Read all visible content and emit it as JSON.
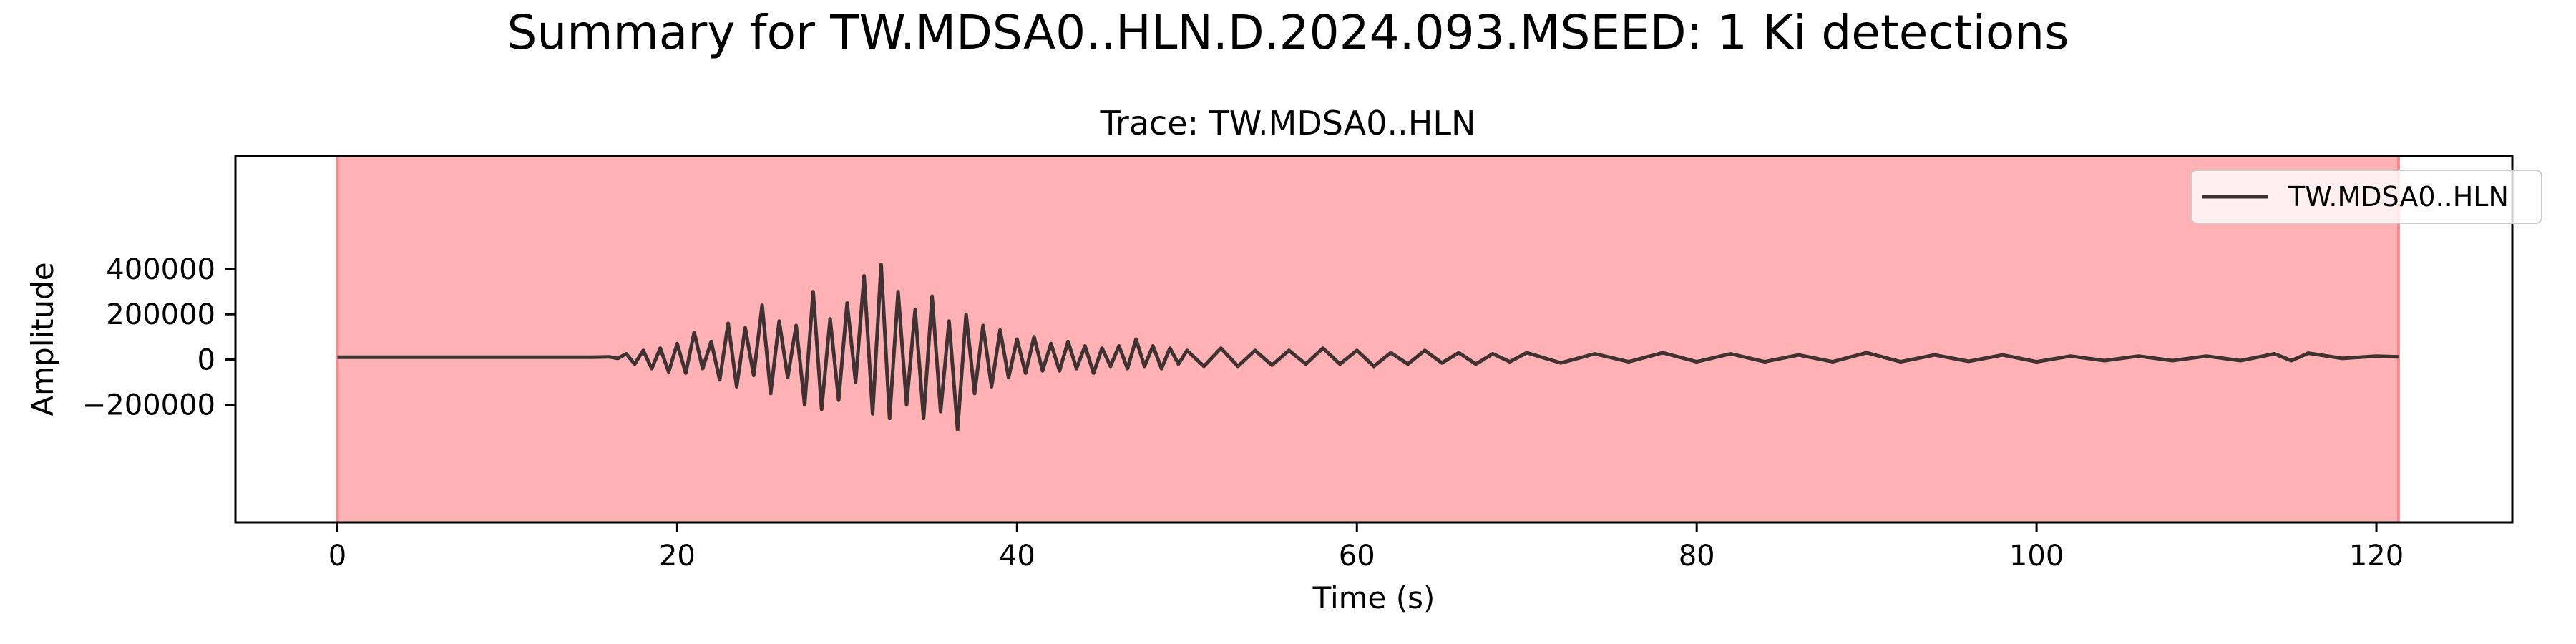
{
  "figure": {
    "suptitle": "Summary for TW.MDSA0..HLN.D.2024.093.MSEED: 1 Ki detections"
  },
  "colors": {
    "trace": "#3f3233",
    "detection_span": "#ffb1b3",
    "detection_edge": "#f08a8d",
    "axes": "#000000",
    "background": "#ffffff"
  },
  "chart_data": {
    "type": "line",
    "title": "Trace: TW.MDSA0..HLN",
    "xlabel": "Time (s)",
    "ylabel": "Amplitude",
    "xlim": [
      -6,
      128
    ],
    "ylim": [
      -720000,
      900000
    ],
    "grid": false,
    "legend_placement": "upper right",
    "xticks": [
      0,
      20,
      40,
      60,
      80,
      100,
      120
    ],
    "xtick_labels": [
      "0",
      "20",
      "40",
      "60",
      "80",
      "100",
      "120"
    ],
    "yticks": [
      -200000,
      0,
      200000,
      400000
    ],
    "ytick_labels": [
      "−200000",
      "0",
      "200000",
      "400000"
    ],
    "detections": [
      {
        "label": "Ki",
        "start": 0,
        "end": 121.3
      }
    ],
    "series": [
      {
        "name": "TW.MDSA0..HLN",
        "x": [
          0,
          15.0,
          16.0,
          16.5,
          17.0,
          17.5,
          18.0,
          18.5,
          19.0,
          19.5,
          20.0,
          20.5,
          21.0,
          21.5,
          22.0,
          22.5,
          23.0,
          23.5,
          24.0,
          24.5,
          25.0,
          25.5,
          26.0,
          26.5,
          27.0,
          27.5,
          28.0,
          28.5,
          29.0,
          29.5,
          30.0,
          30.5,
          31.0,
          31.5,
          32.0,
          32.5,
          33.0,
          33.5,
          34.0,
          34.5,
          35.0,
          35.5,
          36.0,
          36.5,
          37.0,
          37.5,
          38.0,
          38.5,
          39.0,
          39.5,
          40.0,
          40.5,
          41.0,
          41.5,
          42.0,
          42.5,
          43.0,
          43.5,
          44.0,
          44.5,
          45.0,
          45.5,
          46.0,
          46.5,
          47.0,
          47.5,
          48.0,
          48.5,
          49.0,
          49.5,
          50.0,
          51.0,
          52.0,
          53.0,
          54.0,
          55.0,
          56.0,
          57.0,
          58.0,
          59.0,
          60.0,
          61.0,
          62.0,
          63.0,
          64.0,
          65.0,
          66.0,
          67.0,
          68.0,
          69.0,
          70.0,
          72.0,
          74.0,
          76.0,
          78.0,
          80.0,
          82.0,
          84.0,
          86.0,
          88.0,
          90.0,
          92.0,
          94.0,
          96.0,
          98.0,
          100.0,
          102.0,
          104.0,
          106.0,
          108.0,
          110.0,
          112.0,
          114.0,
          115.0,
          116.0,
          118.0,
          120.0,
          121.3
        ],
        "values": [
          10000,
          10000,
          12000,
          5000,
          25000,
          -20000,
          40000,
          -40000,
          50000,
          -55000,
          70000,
          -60000,
          120000,
          -40000,
          80000,
          -90000,
          160000,
          -120000,
          140000,
          -70000,
          240000,
          -150000,
          170000,
          -80000,
          150000,
          -200000,
          300000,
          -220000,
          180000,
          -180000,
          250000,
          -100000,
          370000,
          -240000,
          420000,
          -260000,
          300000,
          -200000,
          220000,
          -260000,
          280000,
          -230000,
          170000,
          -310000,
          200000,
          -150000,
          150000,
          -120000,
          130000,
          -80000,
          90000,
          -60000,
          100000,
          -50000,
          70000,
          -50000,
          80000,
          -40000,
          60000,
          -60000,
          50000,
          -30000,
          60000,
          -40000,
          90000,
          -30000,
          60000,
          -40000,
          50000,
          -20000,
          40000,
          -30000,
          50000,
          -30000,
          40000,
          -25000,
          40000,
          -20000,
          50000,
          -20000,
          40000,
          -30000,
          30000,
          -20000,
          40000,
          -15000,
          30000,
          -20000,
          25000,
          -10000,
          30000,
          -15000,
          25000,
          -10000,
          30000,
          -10000,
          25000,
          -10000,
          20000,
          -10000,
          30000,
          -10000,
          20000,
          -8000,
          20000,
          -10000,
          15000,
          -5000,
          15000,
          -5000,
          15000,
          -5000,
          25000,
          -5000,
          28000,
          5000,
          15000,
          12000
        ]
      }
    ]
  }
}
